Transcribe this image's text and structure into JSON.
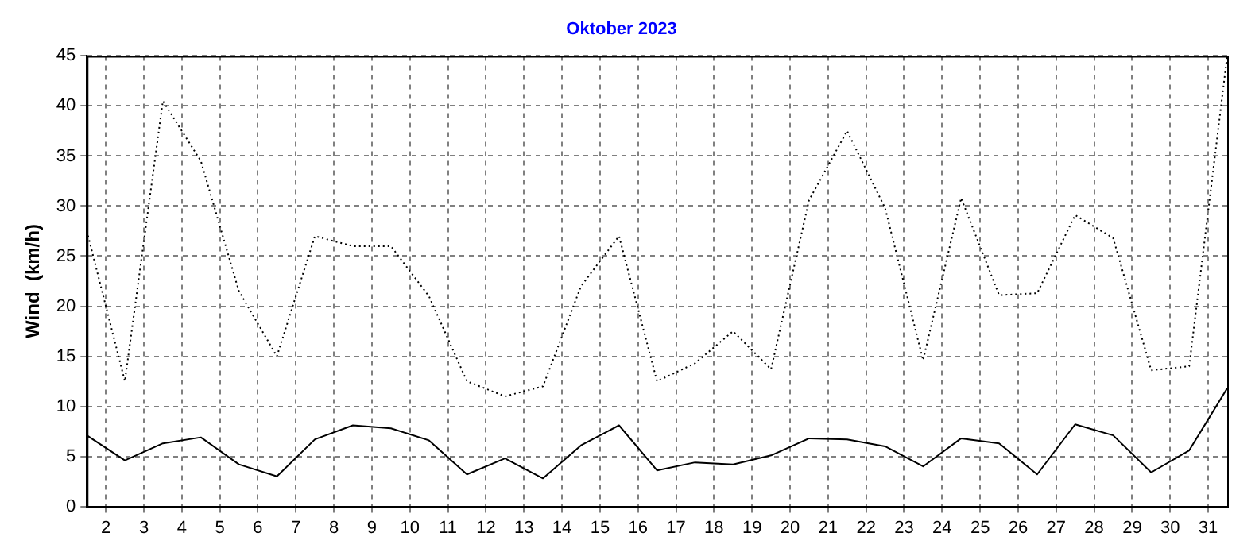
{
  "chart_data": {
    "type": "line",
    "title": "Oktober 2023",
    "ylabel": "Wind  (km/h)",
    "x": [
      1.5,
      2.5,
      3.5,
      4.5,
      5.5,
      6.5,
      7.5,
      8.5,
      9.5,
      10.5,
      11.5,
      12.5,
      13.5,
      14.5,
      15.5,
      16.5,
      17.5,
      18.5,
      19.5,
      20.5,
      21.5,
      22.5,
      23.5,
      24.5,
      25.5,
      26.5,
      27.5,
      28.5,
      29.5,
      30.5,
      31.5
    ],
    "series": [
      {
        "color": "#000000",
        "line_style": "dotted",
        "values": [
          27.5,
          12.5,
          40.5,
          34.5,
          21.5,
          15,
          27,
          26,
          26,
          21,
          12.5,
          11,
          12,
          22,
          27,
          12.5,
          14.3,
          17.5,
          13.7,
          30.6,
          37.5,
          29.8,
          14.6,
          30.8,
          21.1,
          21.3,
          29.1,
          26.8,
          13.6,
          14,
          45
        ]
      },
      {
        "color": "#000000",
        "line_style": "solid",
        "values": [
          7.1,
          4.6,
          6.3,
          6.9,
          4.2,
          3,
          6.7,
          8.1,
          7.8,
          6.6,
          3.2,
          4.8,
          2.8,
          6.1,
          8.1,
          3.6,
          4.4,
          4.2,
          5.1,
          6.8,
          6.7,
          6,
          4,
          6.8,
          6.3,
          3.2,
          8.2,
          7.1,
          3.4,
          5.6,
          11.8
        ]
      }
    ],
    "xlim": [
      1.5,
      31.5
    ],
    "xticks": [
      2,
      3,
      4,
      5,
      6,
      7,
      8,
      9,
      10,
      11,
      12,
      13,
      14,
      15,
      16,
      17,
      18,
      19,
      20,
      21,
      22,
      23,
      24,
      25,
      26,
      27,
      28,
      29,
      30,
      31
    ],
    "ylim": [
      0,
      45
    ],
    "yticks": [
      0,
      5,
      10,
      15,
      20,
      25,
      30,
      35,
      40,
      45
    ],
    "grid": true,
    "marker": "none"
  }
}
